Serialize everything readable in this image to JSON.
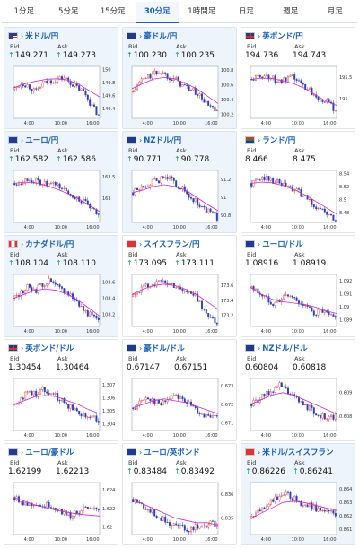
{
  "tabs": [
    {
      "label": "1分足",
      "active": false
    },
    {
      "label": "5分足",
      "active": false
    },
    {
      "label": "15分足",
      "active": false
    },
    {
      "label": "30分足",
      "active": true
    },
    {
      "label": "1時間足",
      "active": false
    },
    {
      "label": "日足",
      "active": false
    },
    {
      "label": "週足",
      "active": false
    },
    {
      "label": "月足",
      "active": false
    }
  ],
  "labels": {
    "bid": "Bid",
    "ask": "Ask"
  },
  "colors": {
    "up": "#e03030",
    "down": "#2a3fbf",
    "ma": "#c72fd0",
    "accent": "#1a5fb4",
    "arrow_up": "#1a9f5a"
  },
  "x_labels": [
    "4:00",
    "10:00",
    "16:00"
  ],
  "cards": [
    {
      "pair": "米ドル/円",
      "flag": "US",
      "bid": "149.271",
      "ask": "149.273",
      "arrow": true,
      "highlight": true,
      "chart_data": {
        "type": "candlestick",
        "yticks": [
          "150",
          "149.8",
          "149.6",
          "149.4"
        ],
        "ylim": [
          149.25,
          150.05
        ],
        "start": 149.7,
        "trend": [
          0.0,
          0.1,
          0.05,
          -0.05,
          0.08,
          0.12,
          0.15,
          0.18,
          0.1,
          0.02,
          -0.05,
          -0.25,
          -0.4
        ],
        "ma": [
          149.72,
          149.78,
          149.82,
          149.85,
          149.86,
          149.84,
          149.78,
          149.68,
          149.58
        ]
      }
    },
    {
      "pair": "豪ドル/円",
      "flag": "AU",
      "bid": "100.230",
      "ask": "100.235",
      "arrow": true,
      "highlight": true,
      "chart_data": {
        "type": "candlestick",
        "yticks": [
          "100.8",
          "100.6",
          "100.4",
          "100.2"
        ],
        "ylim": [
          100.15,
          100.85
        ],
        "start": 100.5,
        "trend": [
          0.0,
          0.15,
          0.2,
          0.25,
          0.28,
          0.22,
          0.18,
          0.1,
          0.05,
          0.0,
          -0.1,
          -0.2,
          -0.28
        ],
        "ma": [
          100.55,
          100.62,
          100.68,
          100.7,
          100.68,
          100.62,
          100.55,
          100.45,
          100.35
        ]
      }
    },
    {
      "pair": "英ポンド/円",
      "flag": "GB",
      "bid": "194.736",
      "ask": "194.743",
      "arrow": false,
      "highlight": false,
      "chart_data": {
        "type": "candlestick",
        "yticks": [
          "195.5",
          "195"
        ],
        "ylim": [
          194.55,
          195.75
        ],
        "start": 195.45,
        "trend": [
          0.0,
          0.05,
          0.1,
          0.02,
          -0.05,
          -0.02,
          0.05,
          -0.1,
          -0.2,
          -0.35,
          -0.45,
          -0.55,
          -0.7
        ],
        "ma": [
          195.45,
          195.48,
          195.47,
          195.42,
          195.35,
          195.25,
          195.1,
          194.95,
          194.85
        ]
      }
    },
    {
      "pair": "ユーロ/円",
      "flag": "EU",
      "bid": "162.582",
      "ask": "162.586",
      "arrow": true,
      "highlight": true,
      "chart_data": {
        "type": "candlestick",
        "yticks": [
          "163.5",
          "163"
        ],
        "ylim": [
          162.45,
          163.65
        ],
        "start": 163.35,
        "trend": [
          0.0,
          0.05,
          0.1,
          0.05,
          0.0,
          -0.05,
          -0.02,
          -0.15,
          -0.25,
          -0.35,
          -0.45,
          -0.6,
          -0.75
        ],
        "ma": [
          163.35,
          163.38,
          163.36,
          163.3,
          163.22,
          163.12,
          163.0,
          162.85,
          162.7
        ]
      }
    },
    {
      "pair": "NZドル/円",
      "flag": "NZ",
      "bid": "90.771",
      "ask": "90.778",
      "arrow": true,
      "highlight": true,
      "chart_data": {
        "type": "candlestick",
        "yticks": [
          "91.2",
          "91",
          "90.8"
        ],
        "ylim": [
          90.72,
          91.3
        ],
        "start": 91.05,
        "trend": [
          0.0,
          0.05,
          0.1,
          0.12,
          0.15,
          0.18,
          0.1,
          0.05,
          -0.05,
          -0.1,
          -0.18,
          -0.22,
          -0.28
        ],
        "ma": [
          91.05,
          91.08,
          91.12,
          91.14,
          91.12,
          91.08,
          91.0,
          90.92,
          90.85
        ]
      }
    },
    {
      "pair": "ランド/円",
      "flag": "ZA",
      "bid": "8.466",
      "ask": "8.475",
      "arrow": false,
      "highlight": false,
      "chart_data": {
        "type": "candlestick",
        "yticks": [
          "8.54",
          "8.52",
          "8.5",
          "8.48"
        ],
        "ylim": [
          8.465,
          8.545
        ],
        "start": 8.525,
        "trend": [
          0.0,
          0.005,
          0.01,
          0.005,
          0.0,
          -0.005,
          -0.01,
          -0.015,
          -0.025,
          -0.035,
          -0.04,
          -0.05,
          -0.058
        ],
        "ma": [
          8.525,
          8.527,
          8.526,
          8.522,
          8.516,
          8.508,
          8.498,
          8.488,
          8.478
        ]
      }
    },
    {
      "pair": "カナダドル/円",
      "flag": "CA",
      "bid": "108.104",
      "ask": "108.110",
      "arrow": true,
      "highlight": true,
      "chart_data": {
        "type": "candlestick",
        "yticks": [
          "108.6",
          "108.4",
          "108.2"
        ],
        "ylim": [
          108.05,
          108.7
        ],
        "start": 108.4,
        "trend": [
          0.0,
          0.08,
          0.15,
          0.1,
          0.18,
          0.22,
          0.15,
          0.1,
          0.05,
          -0.05,
          -0.15,
          -0.22,
          -0.3
        ],
        "ma": [
          108.4,
          108.45,
          108.5,
          108.52,
          108.5,
          108.45,
          108.38,
          108.28,
          108.18
        ]
      }
    },
    {
      "pair": "スイスフラン/円",
      "flag": "CH",
      "bid": "173.095",
      "ask": "173.111",
      "arrow": true,
      "highlight": false,
      "chart_data": {
        "type": "candlestick",
        "yticks": [
          "173.6",
          "173.4",
          "173.2"
        ],
        "ylim": [
          173.05,
          173.75
        ],
        "start": 173.45,
        "trend": [
          0.0,
          0.1,
          0.15,
          0.18,
          0.2,
          0.18,
          0.15,
          0.1,
          0.05,
          0.0,
          -0.15,
          -0.3,
          -0.35
        ],
        "ma": [
          173.48,
          173.55,
          173.6,
          173.62,
          173.6,
          173.55,
          173.48,
          173.38,
          173.28
        ]
      }
    },
    {
      "pair": "ユーロ/ドル",
      "flag": "EU",
      "bid": "1.08916",
      "ask": "1.08919",
      "arrow": false,
      "highlight": false,
      "chart_data": {
        "type": "candlestick",
        "yticks": [
          "1.092",
          "1.091",
          "1.09",
          "1.089"
        ],
        "ylim": [
          1.0885,
          1.0925
        ],
        "start": 1.0915,
        "trend": [
          0.0,
          -0.0004,
          -0.0008,
          -0.0012,
          -0.001,
          -0.0006,
          -0.0008,
          -0.0012,
          -0.0016,
          -0.002,
          -0.0018,
          -0.0022,
          -0.0024
        ],
        "ma": [
          1.0915,
          1.091,
          1.0906,
          1.0904,
          1.0903,
          1.0902,
          1.09,
          1.0897,
          1.0895
        ]
      }
    },
    {
      "pair": "英ポンド/ドル",
      "flag": "GB",
      "bid": "1.30454",
      "ask": "1.30464",
      "arrow": false,
      "highlight": false,
      "chart_data": {
        "type": "candlestick",
        "yticks": [
          "1.307",
          "1.306",
          "1.305",
          "1.304"
        ],
        "ylim": [
          1.3035,
          1.3075
        ],
        "start": 1.3055,
        "trend": [
          0.0,
          0.0005,
          0.001,
          0.0008,
          0.0012,
          0.001,
          0.0006,
          0.0002,
          -0.0002,
          -0.0005,
          -0.0008,
          -0.001,
          -0.0012
        ],
        "ma": [
          1.3055,
          1.3058,
          1.3061,
          1.3062,
          1.3061,
          1.3058,
          1.3055,
          1.3051,
          1.3048
        ]
      }
    },
    {
      "pair": "豪ドル/ドル",
      "flag": "AU",
      "bid": "0.67147",
      "ask": "0.67151",
      "arrow": false,
      "highlight": false,
      "chart_data": {
        "type": "candlestick",
        "yticks": [
          "0.673",
          "0.672",
          "0.671"
        ],
        "ylim": [
          0.6706,
          0.6734
        ],
        "start": 0.6718,
        "trend": [
          0.0,
          0.0003,
          0.0006,
          0.0004,
          0.0002,
          0.0005,
          0.0008,
          0.0005,
          0.0002,
          -0.0001,
          -0.0003,
          -0.0006,
          -0.0004
        ],
        "ma": [
          0.6718,
          0.672,
          0.6722,
          0.6723,
          0.6722,
          0.6721,
          0.6719,
          0.6717,
          0.6715
        ]
      }
    },
    {
      "pair": "NZドル/ドル",
      "flag": "NZ",
      "bid": "0.60804",
      "ask": "0.60818",
      "arrow": false,
      "highlight": false,
      "chart_data": {
        "type": "candlestick",
        "yticks": [
          "0.609",
          "0.608"
        ],
        "ylim": [
          0.6074,
          0.6096
        ],
        "start": 0.6085,
        "trend": [
          0.0,
          0.0002,
          0.0004,
          0.0006,
          0.0008,
          0.0006,
          0.0003,
          0.0001,
          -0.0001,
          -0.0003,
          -0.0005,
          -0.0006,
          -0.0005
        ],
        "ma": [
          0.6085,
          0.6087,
          0.6089,
          0.609,
          0.6089,
          0.6087,
          0.6085,
          0.6083,
          0.6081
        ]
      }
    },
    {
      "pair": "ユーロ/豪ドル",
      "flag": "EU",
      "bid": "1.62199",
      "ask": "1.62213",
      "arrow": false,
      "highlight": false,
      "chart_data": {
        "type": "candlestick",
        "yticks": [
          "1.624",
          "1.622",
          "1.62"
        ],
        "ylim": [
          1.6192,
          1.6248
        ],
        "start": 1.6232,
        "trend": [
          0.0,
          -0.0004,
          -0.0008,
          -0.0006,
          -0.001,
          -0.0008,
          -0.0012,
          -0.0016,
          -0.002,
          -0.0016,
          -0.0012,
          -0.0015,
          -0.0012
        ],
        "ma": [
          1.6232,
          1.6228,
          1.6224,
          1.6221,
          1.6218,
          1.6216,
          1.6214,
          1.6213,
          1.6212
        ]
      }
    },
    {
      "pair": "ユーロ/英ポンド",
      "flag": "EU",
      "bid": "0.83484",
      "ask": "0.83492",
      "arrow": true,
      "highlight": false,
      "chart_data": {
        "type": "candlestick",
        "yticks": [
          "0.836",
          "0.835"
        ],
        "ylim": [
          0.8343,
          0.8365
        ],
        "start": 0.8358,
        "trend": [
          0.0,
          -0.0002,
          -0.0004,
          -0.0006,
          -0.0008,
          -0.001,
          -0.0011,
          -0.0012,
          -0.0013,
          -0.0011,
          -0.0012,
          -0.001,
          -0.0011
        ],
        "ma": [
          0.8358,
          0.8356,
          0.8354,
          0.8352,
          0.835,
          0.8349,
          0.8348,
          0.8348,
          0.8347
        ]
      }
    },
    {
      "pair": "米ドル/スイスフラン",
      "flag": "CH",
      "bid": "0.86226",
      "ask": "0.86241",
      "arrow": true,
      "highlight": true,
      "chart_data": {
        "type": "candlestick",
        "yticks": [
          "0.864",
          "0.863",
          "0.862",
          "0.861"
        ],
        "ylim": [
          0.8606,
          0.8645
        ],
        "start": 0.8618,
        "trend": [
          0.0,
          0.0005,
          0.001,
          0.0014,
          0.0016,
          0.0018,
          0.0015,
          0.0012,
          0.001,
          0.0008,
          0.0006,
          0.0004,
          0.0004
        ],
        "ma": [
          0.8618,
          0.8622,
          0.8626,
          0.863,
          0.8631,
          0.863,
          0.8628,
          0.8626,
          0.8624
        ]
      }
    }
  ]
}
